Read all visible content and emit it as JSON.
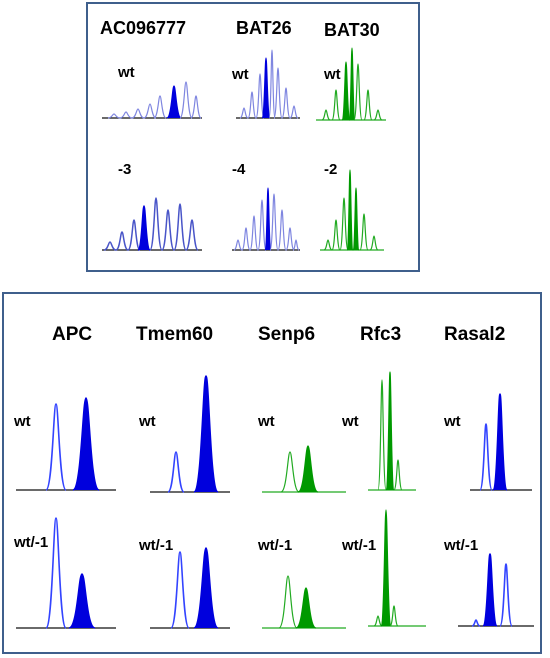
{
  "top_panel": {
    "markers": [
      "AC096777",
      "BAT26",
      "BAT30"
    ],
    "rows": [
      [
        "wt",
        "wt",
        "wt"
      ],
      [
        "-3",
        "-4",
        "-2"
      ]
    ]
  },
  "bottom_panel": {
    "genes": [
      "APC",
      "Tmem60",
      "Senp6",
      "Rfc3",
      "Rasal2"
    ],
    "rows": [
      [
        "wt",
        "wt",
        "wt",
        "wt",
        "wt"
      ],
      [
        "wt/-1",
        "wt/-1",
        "wt/-1",
        "wt/-1",
        "wt/-1"
      ]
    ]
  },
  "colors": {
    "frame": "#3f5f8c",
    "blue_trace": "#3344ff",
    "blue_fill": "#0000dd",
    "light_blue_trace": "#7f86e0",
    "green_trace": "#22aa22",
    "green_fill": "#009900",
    "baseline": "#111111"
  }
}
